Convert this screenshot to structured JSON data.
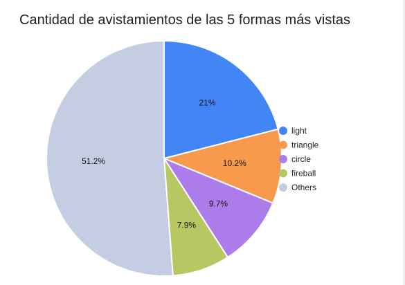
{
  "chart_data": {
    "type": "pie",
    "title": "Cantidad de avistamientos de las 5 formas más vistas",
    "categories": [
      "light",
      "triangle",
      "circle",
      "fireball",
      "Others"
    ],
    "values": [
      21.0,
      10.2,
      9.7,
      7.9,
      51.2
    ],
    "labels": [
      "21%",
      "10.2%",
      "9.7%",
      "7.9%",
      "51.2%"
    ],
    "colors": [
      "#4285F4",
      "#F79A4E",
      "#AC7DEA",
      "#B7C863",
      "#C4CDE2"
    ],
    "legend_position": "right",
    "start_angle_deg": 0,
    "direction": "clockwise"
  }
}
